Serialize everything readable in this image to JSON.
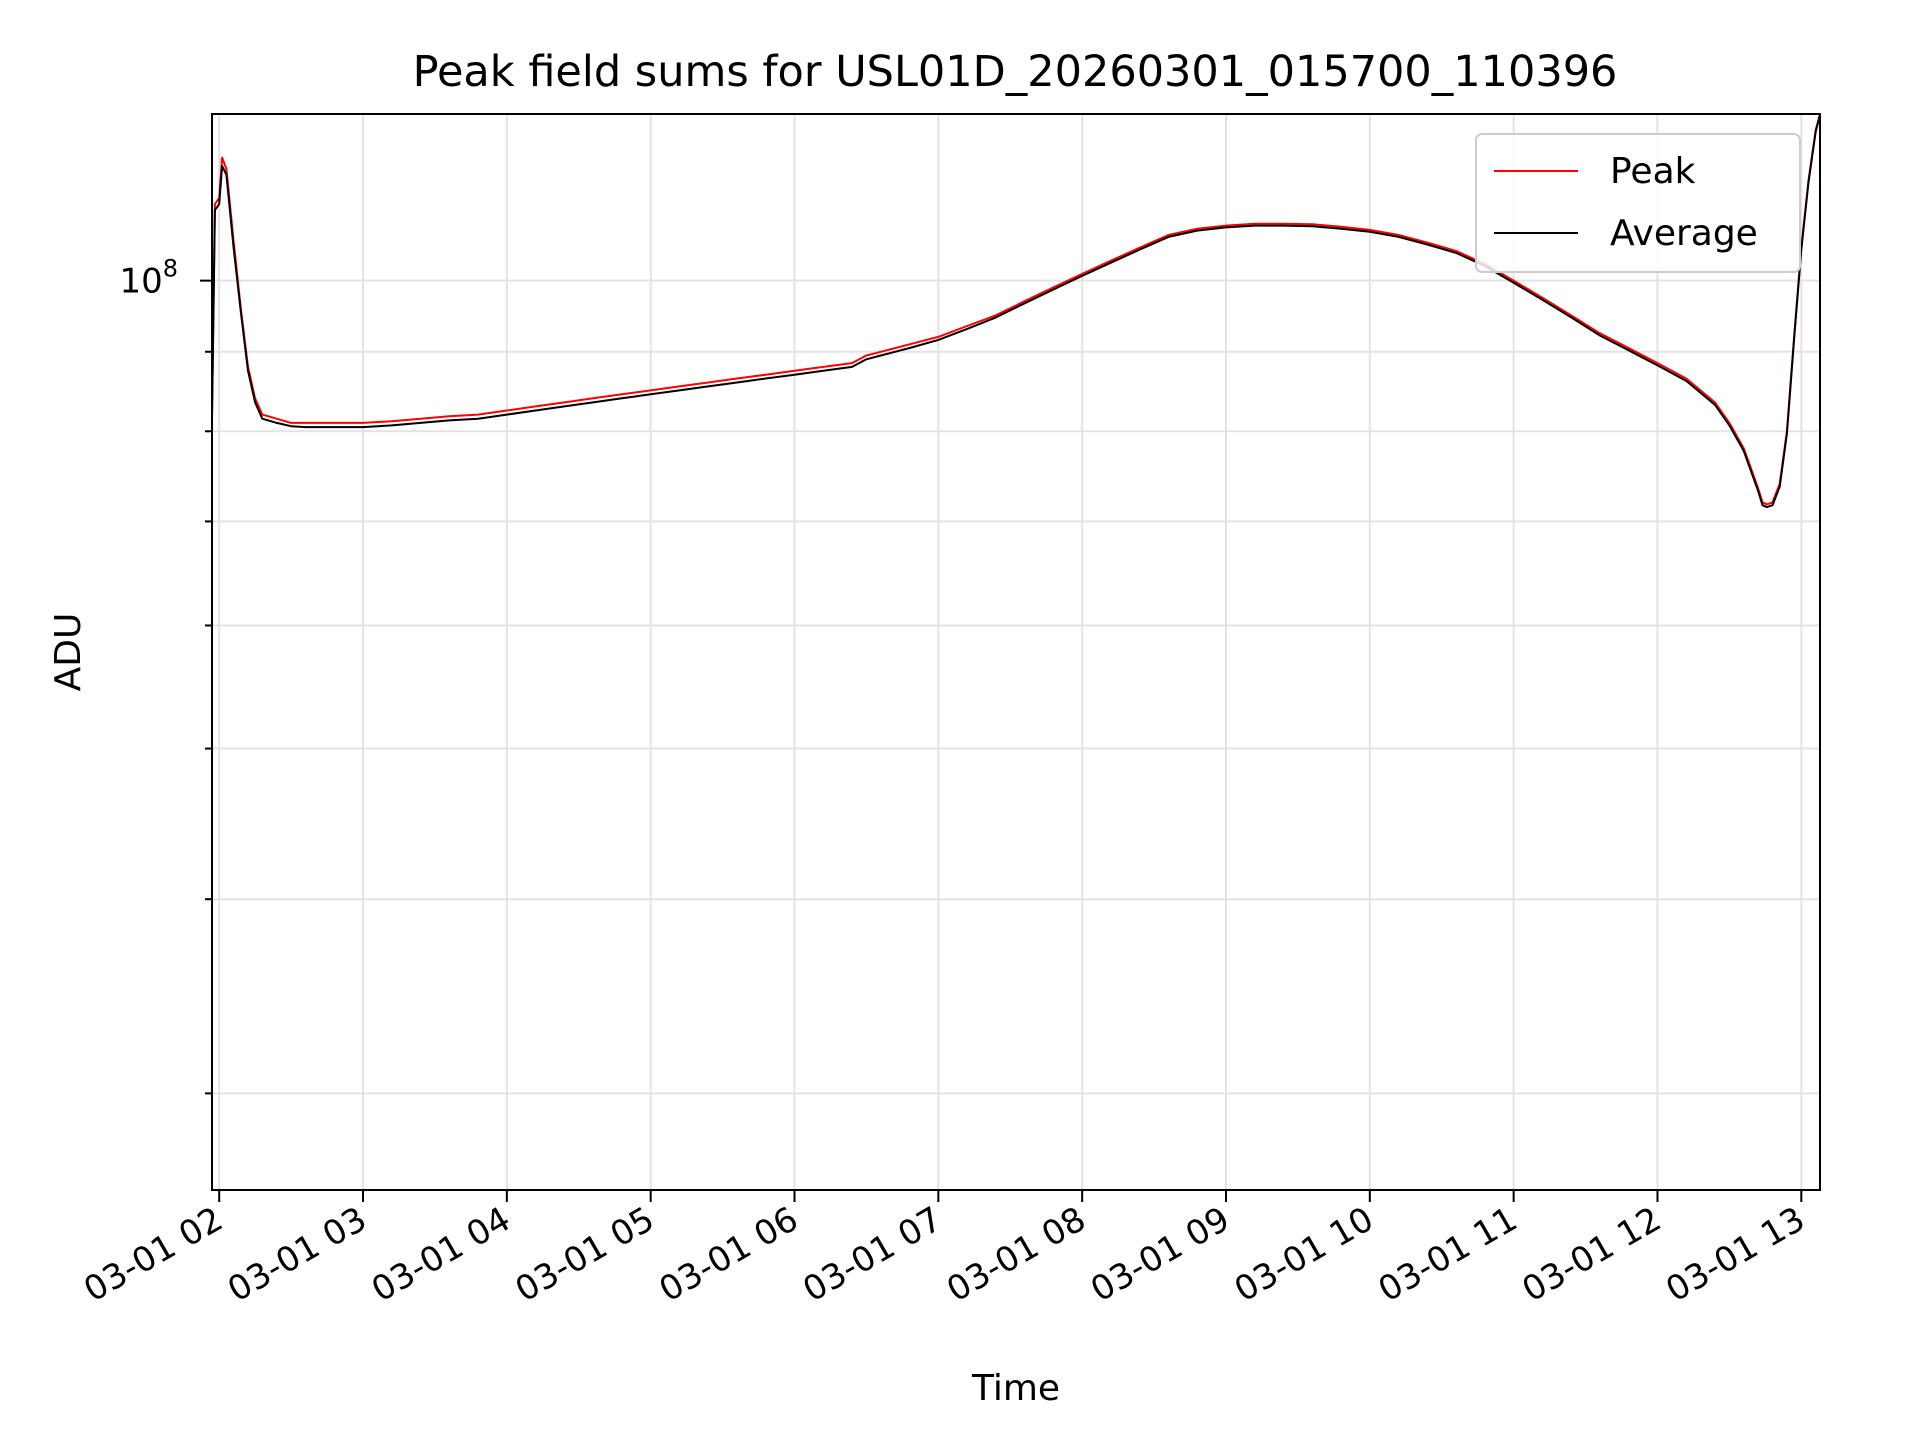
{
  "chart_data": {
    "type": "line",
    "title": "Peak field sums for USL01D_20260301_015700_110396",
    "xlabel": "Time",
    "ylabel": "ADU",
    "x_tick_labels": [
      "03-01 02",
      "03-01 03",
      "03-01 04",
      "03-01 05",
      "03-01 06",
      "03-01 07",
      "03-01 08",
      "03-01 09",
      "03-01 10",
      "03-01 11",
      "03-01 12",
      "03-01 13"
    ],
    "x_ticks_hours": [
      2,
      3,
      4,
      5,
      6,
      7,
      8,
      9,
      10,
      11,
      12,
      13
    ],
    "xlim_hours": [
      1.95,
      13.13
    ],
    "y_scale": "log",
    "ylim": [
      26000000,
      128000000
    ],
    "y_major_tick": {
      "value": 100000000,
      "base": "10",
      "exponent": "8"
    },
    "y_minor_ticks": [
      30000000,
      40000000,
      50000000,
      60000000,
      70000000,
      80000000,
      90000000
    ],
    "grid": true,
    "legend_position": "top-right",
    "series": [
      {
        "name": "Peak",
        "color": "#ff0000",
        "x_hours": [
          1.95,
          1.97,
          2.0,
          2.02,
          2.05,
          2.1,
          2.15,
          2.2,
          2.25,
          2.3,
          2.4,
          2.5,
          2.6,
          2.7,
          2.8,
          2.9,
          3.0,
          3.2,
          3.4,
          3.6,
          3.8,
          4.0,
          4.2,
          4.4,
          4.6,
          4.8,
          5.0,
          5.2,
          5.4,
          5.6,
          5.8,
          6.0,
          6.2,
          6.4,
          6.5,
          6.6,
          6.8,
          7.0,
          7.2,
          7.4,
          7.6,
          7.8,
          8.0,
          8.2,
          8.4,
          8.6,
          8.8,
          9.0,
          9.2,
          9.4,
          9.6,
          9.8,
          10.0,
          10.2,
          10.4,
          10.6,
          10.8,
          11.0,
          11.2,
          11.4,
          11.6,
          11.8,
          12.0,
          12.2,
          12.4,
          12.5,
          12.6,
          12.7,
          12.73,
          12.76,
          12.8,
          12.85,
          12.9,
          12.95,
          13.0,
          13.05,
          13.1,
          13.13
        ],
        "y": [
          82000000,
          112000000,
          113000000,
          120000000,
          118000000,
          106000000,
          96000000,
          88000000,
          84000000,
          82000000,
          81500000,
          81000000,
          81000000,
          81000000,
          81000000,
          81000000,
          81000000,
          81200000,
          81500000,
          81800000,
          82000000,
          82500000,
          83000000,
          83500000,
          84000000,
          84500000,
          85000000,
          85500000,
          86000000,
          86500000,
          87000000,
          87500000,
          88000000,
          88500000,
          89500000,
          90000000,
          91000000,
          92000000,
          93500000,
          95000000,
          97000000,
          99000000,
          101000000,
          103000000,
          105000000,
          107000000,
          108000000,
          108500000,
          108800000,
          108800000,
          108700000,
          108300000,
          107800000,
          107000000,
          105800000,
          104500000,
          102500000,
          100000000,
          97500000,
          95000000,
          92500000,
          90500000,
          88500000,
          86500000,
          83500000,
          81000000,
          78000000,
          73500000,
          72000000,
          71800000,
          72000000,
          74000000,
          80000000,
          92000000,
          105000000,
          116000000,
          125000000,
          128000000
        ]
      },
      {
        "name": "Average",
        "color": "#000000",
        "x_hours": [
          1.95,
          1.97,
          2.0,
          2.02,
          2.05,
          2.1,
          2.15,
          2.2,
          2.25,
          2.3,
          2.4,
          2.5,
          2.6,
          2.7,
          2.8,
          2.9,
          3.0,
          3.2,
          3.4,
          3.6,
          3.8,
          4.0,
          4.2,
          4.4,
          4.6,
          4.8,
          5.0,
          5.2,
          5.4,
          5.6,
          5.8,
          6.0,
          6.2,
          6.4,
          6.5,
          6.6,
          6.8,
          7.0,
          7.2,
          7.4,
          7.6,
          7.8,
          8.0,
          8.2,
          8.4,
          8.6,
          8.8,
          9.0,
          9.2,
          9.4,
          9.6,
          9.8,
          10.0,
          10.2,
          10.4,
          10.6,
          10.8,
          11.0,
          11.2,
          11.4,
          11.6,
          11.8,
          12.0,
          12.2,
          12.4,
          12.5,
          12.6,
          12.7,
          12.73,
          12.76,
          12.8,
          12.85,
          12.9,
          12.95,
          13.0,
          13.05,
          13.1,
          13.13
        ],
        "y": [
          81500000,
          111000000,
          112000000,
          118500000,
          117000000,
          105000000,
          95500000,
          87500000,
          83500000,
          81500000,
          81000000,
          80600000,
          80500000,
          80500000,
          80500000,
          80500000,
          80500000,
          80700000,
          81000000,
          81300000,
          81500000,
          82000000,
          82500000,
          83000000,
          83500000,
          84000000,
          84500000,
          85000000,
          85500000,
          86000000,
          86500000,
          87000000,
          87500000,
          88000000,
          89000000,
          89500000,
          90500000,
          91600000,
          93100000,
          94700000,
          96700000,
          98700000,
          100700000,
          102700000,
          104700000,
          106700000,
          107700000,
          108200000,
          108500000,
          108500000,
          108400000,
          108000000,
          107500000,
          106700000,
          105500000,
          104200000,
          102200000,
          99700000,
          97200000,
          94700000,
          92200000,
          90200000,
          88200000,
          86200000,
          83200000,
          80700000,
          77700000,
          73200000,
          71700000,
          71500000,
          71700000,
          73700000,
          79700000,
          91700000,
          104700000,
          115700000,
          124700000,
          127800000
        ]
      }
    ]
  }
}
